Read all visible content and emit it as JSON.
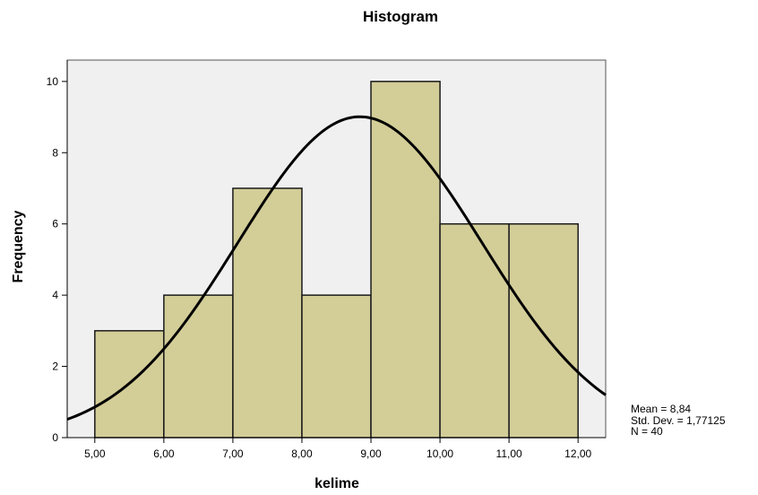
{
  "chart_data": {
    "type": "bar",
    "title": "Histogram",
    "xlabel": "kelime",
    "ylabel": "Frequency",
    "bins": [
      {
        "from": 5.0,
        "to": 6.0,
        "count": 3
      },
      {
        "from": 6.0,
        "to": 7.0,
        "count": 4
      },
      {
        "from": 7.0,
        "to": 8.0,
        "count": 7
      },
      {
        "from": 8.0,
        "to": 9.0,
        "count": 4
      },
      {
        "from": 9.0,
        "to": 10.0,
        "count": 10
      },
      {
        "from": 10.0,
        "to": 11.0,
        "count": 6
      },
      {
        "from": 11.0,
        "to": 12.0,
        "count": 6
      }
    ],
    "xlim": [
      4.6,
      12.4
    ],
    "ylim": [
      0,
      10.6
    ],
    "x_ticks": [
      {
        "value": 5,
        "label": "5,00"
      },
      {
        "value": 6,
        "label": "6,00"
      },
      {
        "value": 7,
        "label": "7,00"
      },
      {
        "value": 8,
        "label": "8,00"
      },
      {
        "value": 9,
        "label": "9,00"
      },
      {
        "value": 10,
        "label": "10,00"
      },
      {
        "value": 11,
        "label": "11,00"
      },
      {
        "value": 12,
        "label": "12,00"
      }
    ],
    "y_ticks": [
      {
        "value": 0,
        "label": "0"
      },
      {
        "value": 2,
        "label": "2"
      },
      {
        "value": 4,
        "label": "4"
      },
      {
        "value": 6,
        "label": "6"
      },
      {
        "value": 8,
        "label": "8"
      },
      {
        "value": 10,
        "label": "10"
      }
    ],
    "normal_curve": {
      "mean": 8.84,
      "std_dev": 1.77125,
      "n": 40,
      "bin_width": 1
    },
    "colors": {
      "bar_fill": "#d3cd98",
      "bar_stroke": "#1a1a1a",
      "plot_bg": "#f0f0f0",
      "curve": "#000000"
    },
    "grid": false
  },
  "stats": {
    "mean": "Mean = 8,84",
    "std_dev": "Std. Dev. = 1,77125",
    "n": "N = 40"
  }
}
